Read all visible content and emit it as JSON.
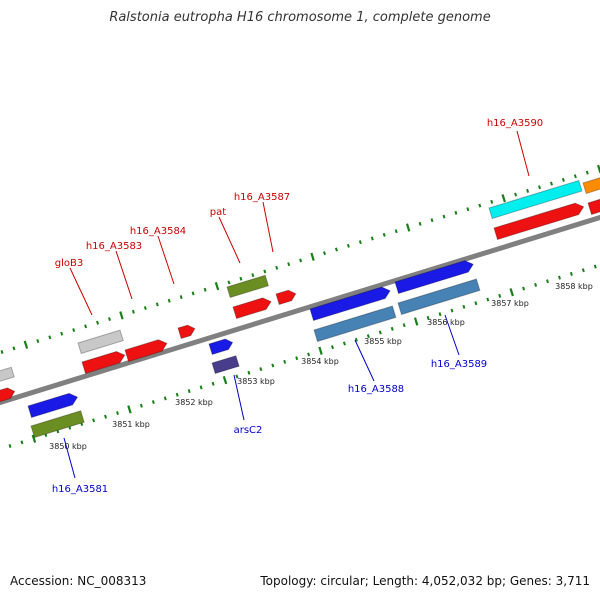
{
  "title": "Ralstonia eutropha H16 chromosome 1, complete genome",
  "footer": {
    "accession": "Accession: NC_008313",
    "summary": "Topology: circular; Length: 4,052,032 bp; Genes: 3,711"
  },
  "colors": {
    "backbone": "#808080",
    "tick": "#1a7f1a",
    "top_label": "#cc0000",
    "bottom_label": "#0000cc",
    "red": "#ee1111",
    "gray": "#c8c8c8",
    "olive": "#6b8e23",
    "blue": "#1a1ae6",
    "steel": "#4682b4",
    "navy": "#483d8b",
    "cyan": "#00eeee",
    "orange": "#ff8c00"
  },
  "scale": {
    "unit": "kbp",
    "labels": [
      "3850 kbp",
      "3851 kbp",
      "3852 kbp",
      "3853 kbp",
      "3854 kbp",
      "3855 kbp",
      "3856 kbp",
      "3857 kbp",
      "3858 kbp"
    ]
  },
  "top_labels": [
    "gloB3",
    "h16_A3583",
    "h16_A3584",
    "pat",
    "h16_A3587",
    "h16_A3590"
  ],
  "bottom_labels": [
    "h16_A3581",
    "arsC2",
    "h16_A3588",
    "h16_A3589"
  ]
}
